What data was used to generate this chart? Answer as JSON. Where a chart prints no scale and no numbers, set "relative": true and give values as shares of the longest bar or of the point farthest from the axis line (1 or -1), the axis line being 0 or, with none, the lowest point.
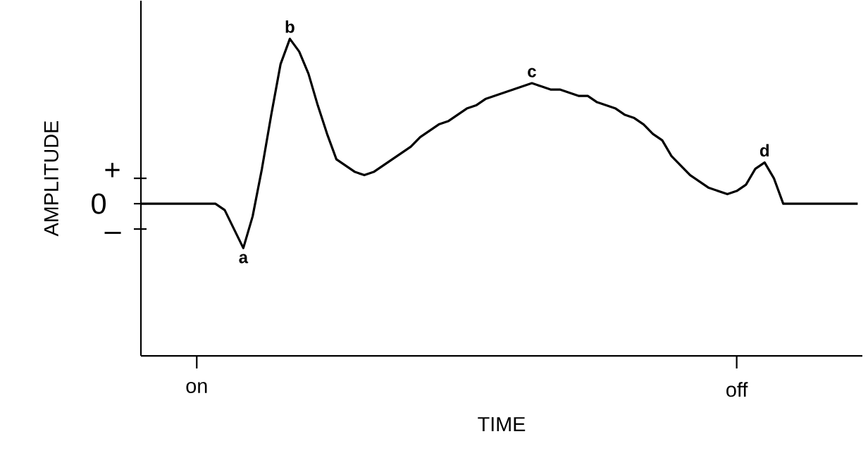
{
  "chart_data": {
    "type": "line",
    "xlabel": "TIME",
    "ylabel": "AMPLITUDE",
    "relative": true,
    "categories": [
      null,
      null,
      null,
      null,
      null,
      null,
      "on",
      null,
      null,
      null,
      null,
      null,
      null,
      null,
      null,
      null,
      null,
      null,
      null,
      null,
      null,
      null,
      null,
      null,
      null,
      null,
      null,
      null,
      null,
      null,
      null,
      null,
      null,
      null,
      null,
      null,
      null,
      null,
      null,
      null,
      null,
      null,
      null,
      null,
      null,
      null,
      null,
      null,
      null,
      null,
      null,
      null,
      null,
      null,
      null,
      null,
      null,
      null,
      null,
      null,
      null,
      null,
      null,
      null,
      "off",
      null,
      null,
      null,
      null,
      null,
      null,
      null,
      null,
      null,
      null,
      null,
      null,
      null
    ],
    "marker": "none",
    "line_style": "solid",
    "series": [
      {
        "color": "#000000",
        "values": [
          0.48,
          0.48,
          0.48,
          0.48,
          0.48,
          0.48,
          0.48,
          0.48,
          0.48,
          0.46,
          0.4,
          0.34,
          0.44,
          0.59,
          0.76,
          0.92,
          1,
          0.96,
          0.89,
          0.79,
          0.7,
          0.62,
          0.6,
          0.58,
          0.57,
          0.58,
          0.6,
          0.62,
          0.64,
          0.66,
          0.69,
          0.71,
          0.73,
          0.74,
          0.76,
          0.78,
          0.79,
          0.81,
          0.82,
          0.83,
          0.84,
          0.85,
          0.86,
          0.85,
          0.84,
          0.84,
          0.83,
          0.82,
          0.82,
          0.8,
          0.79,
          0.78,
          0.76,
          0.75,
          0.73,
          0.7,
          0.68,
          0.63,
          0.6,
          0.57,
          0.55,
          0.53,
          0.52,
          0.51,
          0.52,
          0.54,
          0.59,
          0.61,
          0.56,
          0.48,
          0.48,
          0.48,
          0.48,
          0.48,
          0.48,
          0.48,
          0.48,
          0.48
        ]
      }
    ],
    "annotations": [
      {
        "text": "a",
        "y": 0.34
      },
      {
        "text": "b",
        "y": 1
      },
      {
        "text": "c",
        "y": 0.86
      },
      {
        "text": "d",
        "y": 0.61
      },
      "+",
      "0",
      "–"
    ]
  }
}
